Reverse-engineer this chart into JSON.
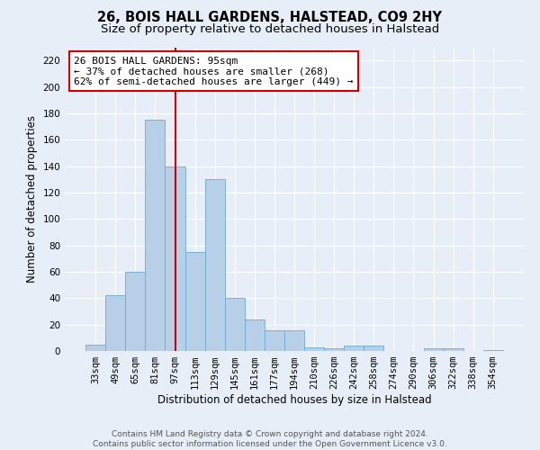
{
  "title": "26, BOIS HALL GARDENS, HALSTEAD, CO9 2HY",
  "subtitle": "Size of property relative to detached houses in Halstead",
  "xlabel": "Distribution of detached houses by size in Halstead",
  "ylabel": "Number of detached properties",
  "bar_labels": [
    "33sqm",
    "49sqm",
    "65sqm",
    "81sqm",
    "97sqm",
    "113sqm",
    "129sqm",
    "145sqm",
    "161sqm",
    "177sqm",
    "194sqm",
    "210sqm",
    "226sqm",
    "242sqm",
    "258sqm",
    "274sqm",
    "290sqm",
    "306sqm",
    "322sqm",
    "338sqm",
    "354sqm"
  ],
  "bar_values": [
    5,
    42,
    60,
    175,
    140,
    75,
    130,
    40,
    24,
    16,
    16,
    3,
    2,
    4,
    4,
    0,
    0,
    2,
    2,
    0,
    1
  ],
  "bar_color": "#b8cfe8",
  "bar_edge_color": "#6aaad4",
  "vline_x_index": 4,
  "vline_color": "#cc0000",
  "annotation_text": "26 BOIS HALL GARDENS: 95sqm\n← 37% of detached houses are smaller (268)\n62% of semi-detached houses are larger (449) →",
  "annotation_box_color": "#ffffff",
  "annotation_box_edge_color": "#cc0000",
  "ylim": [
    0,
    230
  ],
  "yticks": [
    0,
    20,
    40,
    60,
    80,
    100,
    120,
    140,
    160,
    180,
    200,
    220
  ],
  "bg_color": "#e8eef8",
  "plot_bg_color": "#e8eef8",
  "footer_line1": "Contains HM Land Registry data © Crown copyright and database right 2024.",
  "footer_line2": "Contains public sector information licensed under the Open Government Licence v3.0.",
  "title_fontsize": 10.5,
  "subtitle_fontsize": 9.5,
  "axis_label_fontsize": 8.5,
  "tick_fontsize": 7.5,
  "annotation_fontsize": 8,
  "footer_fontsize": 6.5
}
